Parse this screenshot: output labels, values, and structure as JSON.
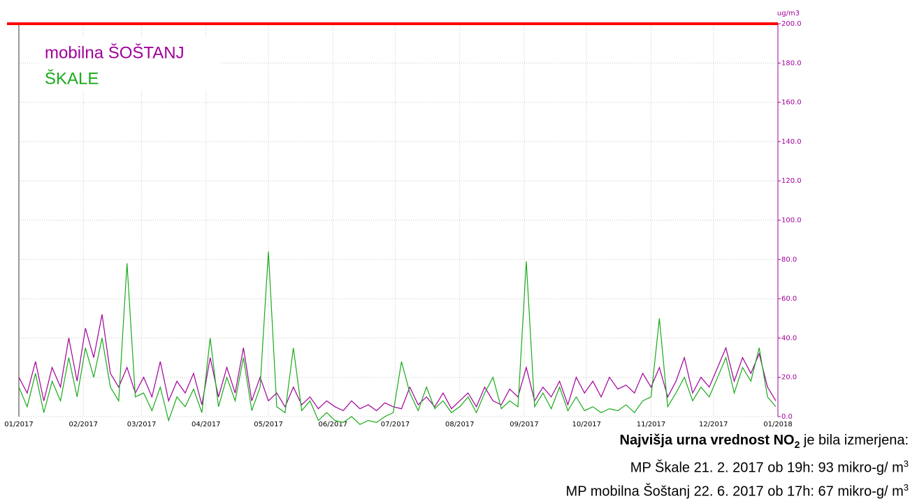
{
  "chart_data": {
    "type": "line",
    "unit": "ug/m3",
    "x": [
      0,
      4,
      8,
      12,
      16,
      20,
      24,
      28,
      32,
      36,
      40,
      44,
      48,
      52,
      56,
      60,
      64,
      68,
      72,
      76,
      80,
      84,
      88,
      92,
      96,
      100,
      104,
      108,
      112,
      116,
      120,
      124,
      128,
      132,
      136,
      140,
      144,
      148,
      152,
      156,
      160,
      164,
      168,
      172,
      176,
      180,
      184,
      188,
      192,
      196,
      200,
      204,
      208,
      212,
      216,
      220,
      224,
      228,
      232,
      236,
      240,
      244,
      248,
      252,
      256,
      260,
      264,
      268,
      272,
      276,
      280,
      284,
      288,
      292,
      296,
      300,
      304,
      308,
      312,
      316,
      320,
      324,
      328,
      332,
      336,
      340,
      344,
      348,
      352,
      356,
      360,
      364
    ],
    "series": [
      {
        "name": "mobilna ŠOŠTANJ",
        "color": "#a0009a",
        "values": [
          20,
          12,
          28,
          8,
          25,
          15,
          40,
          18,
          45,
          30,
          52,
          22,
          15,
          25,
          12,
          20,
          10,
          28,
          8,
          18,
          12,
          22,
          6,
          30,
          10,
          25,
          12,
          35,
          8,
          20,
          8,
          12,
          5,
          15,
          6,
          10,
          4,
          8,
          5,
          3,
          8,
          4,
          6,
          3,
          7,
          5,
          4,
          15,
          6,
          10,
          5,
          12,
          4,
          8,
          12,
          5,
          15,
          8,
          6,
          14,
          10,
          25,
          8,
          15,
          10,
          18,
          6,
          20,
          12,
          18,
          10,
          20,
          14,
          16,
          12,
          22,
          15,
          25,
          10,
          18,
          30,
          12,
          20,
          15,
          25,
          35,
          18,
          30,
          22,
          32,
          15,
          8
        ]
      },
      {
        "name": "ŠKALE",
        "color": "#1aaa1a",
        "values": [
          15,
          5,
          22,
          2,
          18,
          8,
          30,
          10,
          35,
          20,
          40,
          15,
          8,
          78,
          10,
          12,
          3,
          15,
          -2,
          10,
          5,
          14,
          2,
          40,
          5,
          20,
          8,
          30,
          3,
          15,
          84,
          5,
          2,
          35,
          3,
          8,
          -2,
          2,
          -2,
          -3,
          0,
          -4,
          -2,
          -3,
          0,
          2,
          28,
          12,
          3,
          15,
          4,
          8,
          2,
          5,
          10,
          2,
          12,
          20,
          4,
          8,
          5,
          79,
          5,
          12,
          4,
          15,
          3,
          10,
          3,
          5,
          2,
          4,
          3,
          6,
          2,
          8,
          10,
          50,
          5,
          12,
          20,
          8,
          15,
          10,
          20,
          30,
          12,
          25,
          18,
          35,
          10,
          5
        ]
      }
    ],
    "xlim": [
      0,
      365
    ],
    "xticks": [
      {
        "value": 0,
        "label": "01/2017"
      },
      {
        "value": 31,
        "label": "02/2017"
      },
      {
        "value": 59,
        "label": "03/2017"
      },
      {
        "value": 90,
        "label": "04/2017"
      },
      {
        "value": 120,
        "label": "05/2017"
      },
      {
        "value": 151,
        "label": "06/2017"
      },
      {
        "value": 181,
        "label": "07/2017"
      },
      {
        "value": 212,
        "label": "08/2017"
      },
      {
        "value": 243,
        "label": "09/2017"
      },
      {
        "value": 273,
        "label": "10/2017"
      },
      {
        "value": 304,
        "label": "11/2017"
      },
      {
        "value": 334,
        "label": "12/2017"
      },
      {
        "value": 365,
        "label": "01/2018"
      }
    ],
    "ylim": [
      0,
      200
    ],
    "yticks": [
      {
        "value": 0,
        "label": "0.0"
      },
      {
        "value": 20,
        "label": "20.0"
      },
      {
        "value": 40,
        "label": "40.0"
      },
      {
        "value": 60,
        "label": "60.0"
      },
      {
        "value": 80,
        "label": "80.0"
      },
      {
        "value": 100,
        "label": "100.0"
      },
      {
        "value": 120,
        "label": "120.0"
      },
      {
        "value": 140,
        "label": "140.0"
      },
      {
        "value": 160,
        "label": "160.0"
      },
      {
        "value": 180,
        "label": "180.0"
      },
      {
        "value": 200,
        "label": "200.0"
      }
    ],
    "limit_line": {
      "value": 200,
      "color": "#ff0000"
    },
    "grid": true,
    "legend": "upper left"
  },
  "note": {
    "heading_bold": "Najvišja urna vrednost NO",
    "heading_sub": "2",
    "heading_rest": " je bila izmerjena:",
    "lines": [
      {
        "text": "MP Škale 21. 2. 2017 ob 19h: 93 mikro-g/ m",
        "sup": "3"
      },
      {
        "text": "MP mobilna Šoštanj 22. 6. 2017 ob 17h: 67 mikro-g/ m",
        "sup": "3"
      }
    ]
  }
}
